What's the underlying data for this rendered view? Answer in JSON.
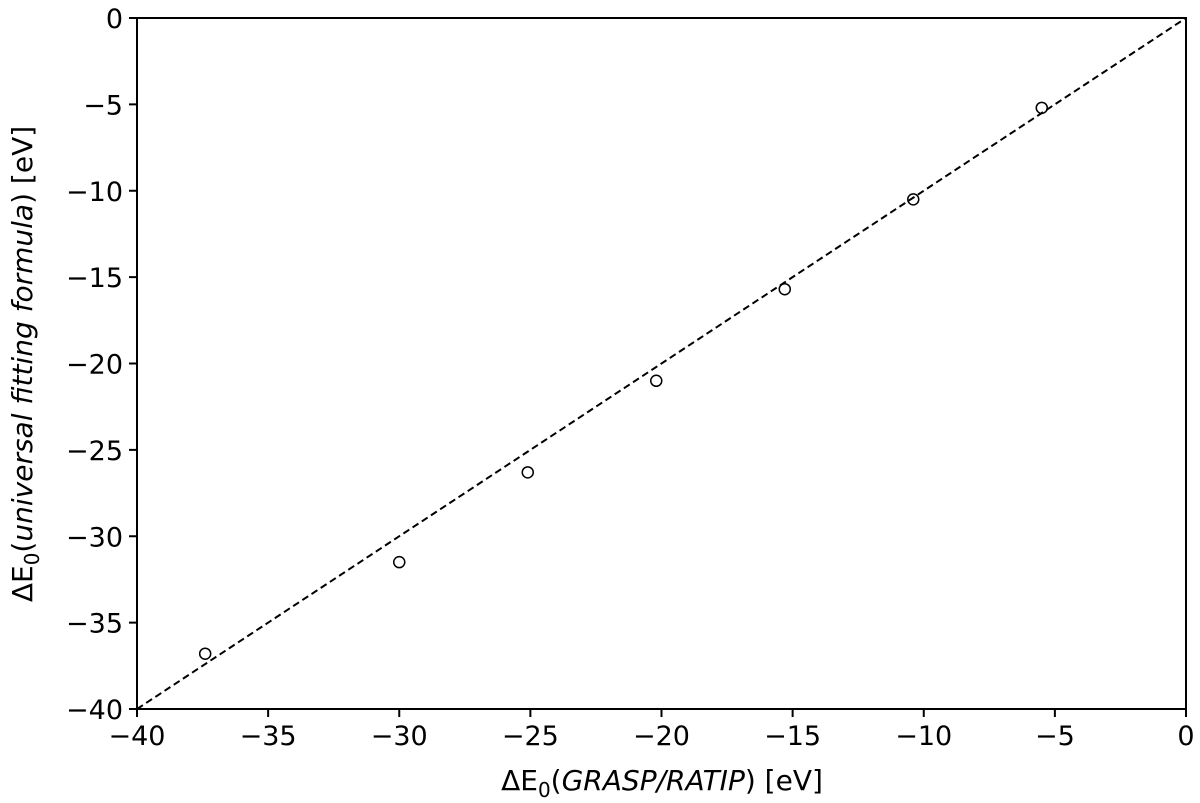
{
  "chart_data": {
    "type": "scatter",
    "xlabel": {
      "prefix": "ΔE",
      "sub": "0",
      "paren": "GRASP/RATIP",
      "unit": " [eV]"
    },
    "ylabel": {
      "prefix": "ΔE",
      "sub": "0",
      "paren": "universal fitting formula",
      "unit": " [eV]"
    },
    "xlim": [
      -40,
      0
    ],
    "ylim": [
      -40,
      0
    ],
    "xticks": [
      -40,
      -35,
      -30,
      -25,
      -20,
      -15,
      -10,
      -5,
      0
    ],
    "yticks": [
      -40,
      -35,
      -30,
      -25,
      -20,
      -15,
      -10,
      -5,
      0
    ],
    "xtick_labels": [
      "−40",
      "−35",
      "−30",
      "−25",
      "−20",
      "−15",
      "−10",
      "−5",
      "0"
    ],
    "ytick_labels": [
      "−40",
      "−35",
      "−30",
      "−25",
      "−20",
      "−15",
      "−10",
      "−5",
      "0"
    ],
    "grid": false,
    "series": [
      {
        "marker": "open-circle",
        "color": "#000000",
        "points": [
          {
            "x": -37.4,
            "y": -36.8
          },
          {
            "x": -30.0,
            "y": -31.5
          },
          {
            "x": -25.1,
            "y": -26.3
          },
          {
            "x": -20.2,
            "y": -21.0
          },
          {
            "x": -15.3,
            "y": -15.7
          },
          {
            "x": -10.4,
            "y": -10.5
          },
          {
            "x": -5.5,
            "y": -5.2
          }
        ]
      }
    ],
    "reference_line": {
      "style": "dashed",
      "color": "#000000",
      "from": [
        -40,
        -40
      ],
      "to": [
        0,
        0
      ]
    }
  }
}
